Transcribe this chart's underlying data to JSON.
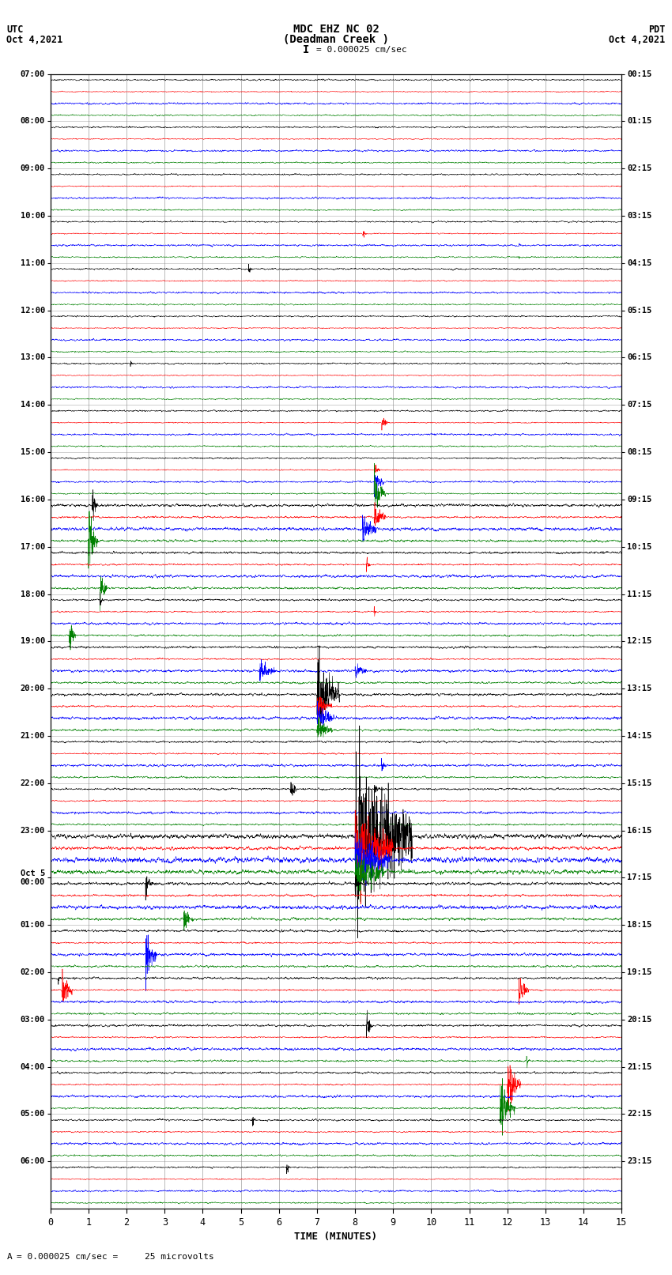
{
  "title_line1": "MDC EHZ NC 02",
  "title_line2": "(Deadman Creek )",
  "title_line3": "I = 0.000025 cm/sec",
  "left_header_line1": "UTC",
  "left_header_line2": "Oct 4,2021",
  "right_header_line1": "PDT",
  "right_header_line2": "Oct 4,2021",
  "xlabel": "TIME (MINUTES)",
  "bottom_note": "= 0.000025 cm/sec =     25 microvolts",
  "bg_color": "#ffffff",
  "grid_color": "#888888",
  "trace_colors": [
    "black",
    "red",
    "blue",
    "green"
  ],
  "utc_labels": [
    "07:00",
    "08:00",
    "09:00",
    "10:00",
    "11:00",
    "12:00",
    "13:00",
    "14:00",
    "15:00",
    "16:00",
    "17:00",
    "18:00",
    "19:00",
    "20:00",
    "21:00",
    "22:00",
    "23:00",
    "Oct 5\n00:00",
    "01:00",
    "02:00",
    "03:00",
    "04:00",
    "05:00",
    "06:00"
  ],
  "pdt_labels": [
    "00:15",
    "01:15",
    "02:15",
    "03:15",
    "04:15",
    "05:15",
    "06:15",
    "07:15",
    "08:15",
    "09:15",
    "10:15",
    "11:15",
    "12:15",
    "13:15",
    "14:15",
    "15:15",
    "16:15",
    "17:15",
    "18:15",
    "19:15",
    "20:15",
    "21:15",
    "22:15",
    "23:15"
  ],
  "n_rows": 24,
  "n_traces_per_row": 4,
  "minutes": 15,
  "samples_per_minute": 200,
  "figwidth": 8.5,
  "figheight": 16.13,
  "dpi": 100
}
